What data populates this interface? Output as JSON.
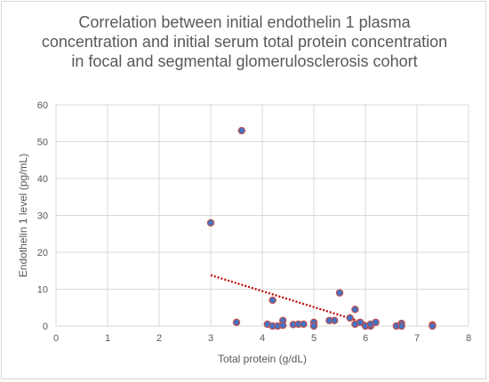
{
  "chart_data": {
    "type": "scatter",
    "title": "Correlation between initial endothelin 1 plasma concentration and initial serum total protein concentration in focal and segmental glomerulosclerosis cohort",
    "xlabel": "Total protein (g/dL)",
    "ylabel": "Endothelin 1 level (pg/mL)",
    "xlim": [
      0,
      8
    ],
    "ylim": [
      0,
      60
    ],
    "xticks": [
      0,
      1,
      2,
      3,
      4,
      5,
      6,
      7,
      8
    ],
    "yticks": [
      0,
      10,
      20,
      30,
      40,
      50,
      60
    ],
    "grid": true,
    "legend": "none",
    "marker_fill": "#4472c4",
    "marker_edge": "#c0504d",
    "trendline": {
      "type": "linear",
      "style": "dotted",
      "color": "#c00000",
      "from": [
        3.0,
        13.8
      ],
      "to": [
        6.0,
        0.8
      ]
    },
    "points": [
      [
        3.0,
        28
      ],
      [
        3.5,
        1
      ],
      [
        3.6,
        53
      ],
      [
        4.1,
        0.5
      ],
      [
        4.2,
        7
      ],
      [
        4.2,
        0
      ],
      [
        4.3,
        0
      ],
      [
        4.4,
        1.5
      ],
      [
        4.4,
        0.2
      ],
      [
        4.6,
        0.4
      ],
      [
        4.7,
        0.5
      ],
      [
        4.8,
        0.5
      ],
      [
        5.0,
        1
      ],
      [
        5.0,
        0
      ],
      [
        5.3,
        1.5
      ],
      [
        5.4,
        1.5
      ],
      [
        5.5,
        9
      ],
      [
        5.7,
        2.2
      ],
      [
        5.8,
        4.5
      ],
      [
        5.8,
        0.5
      ],
      [
        5.9,
        1
      ],
      [
        6.0,
        0
      ],
      [
        6.1,
        0
      ],
      [
        6.1,
        0.5
      ],
      [
        6.2,
        1
      ],
      [
        6.6,
        0
      ],
      [
        6.7,
        0.7
      ],
      [
        6.7,
        0
      ],
      [
        7.3,
        0.3
      ],
      [
        7.3,
        0
      ]
    ]
  }
}
